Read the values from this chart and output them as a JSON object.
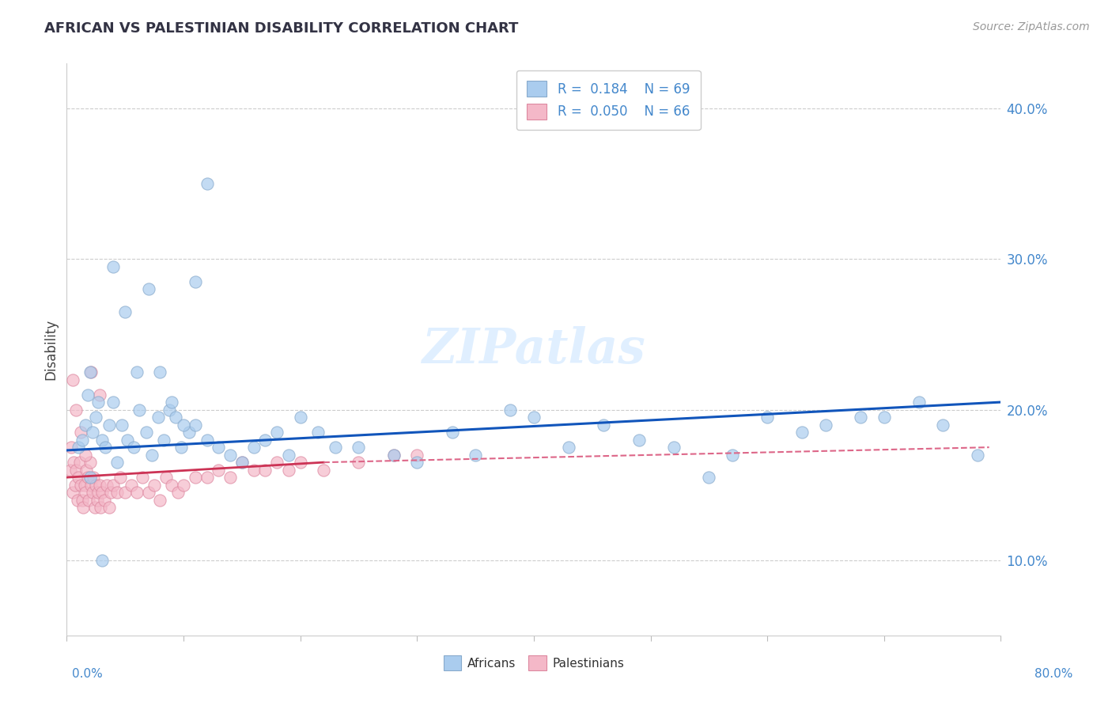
{
  "title": "AFRICAN VS PALESTINIAN DISABILITY CORRELATION CHART",
  "source": "Source: ZipAtlas.com",
  "ylabel": "Disability",
  "xlim": [
    0.0,
    80.0
  ],
  "ylim": [
    5.0,
    43.0
  ],
  "yticks": [
    10.0,
    20.0,
    30.0,
    40.0
  ],
  "ytick_labels": [
    "10.0%",
    "20.0%",
    "30.0%",
    "40.0%"
  ],
  "african_color": "#aaccee",
  "african_edge": "#88aacc",
  "palestinian_color": "#f4b8c8",
  "palestinian_edge": "#dd88a0",
  "trend_african_color": "#1155bb",
  "trend_palestinian_color": "#cc3355",
  "trend_pal_dash_color": "#dd6688",
  "R_african": 0.184,
  "N_african": 69,
  "R_palestinian": 0.05,
  "N_palestinian": 66,
  "watermark": "ZIPatlas",
  "african_x": [
    1.0,
    1.3,
    1.6,
    1.8,
    2.0,
    2.2,
    2.5,
    2.7,
    3.0,
    3.3,
    3.6,
    4.0,
    4.3,
    4.7,
    5.2,
    5.7,
    6.2,
    6.8,
    7.3,
    7.8,
    8.3,
    8.8,
    9.3,
    9.8,
    10.5,
    11.0,
    12.0,
    13.0,
    14.0,
    15.0,
    16.0,
    17.0,
    18.0,
    19.0,
    20.0,
    21.5,
    23.0,
    25.0,
    28.0,
    30.0,
    33.0,
    35.0,
    38.0,
    40.0,
    43.0,
    46.0,
    49.0,
    52.0,
    55.0,
    57.0,
    60.0,
    63.0,
    65.0,
    68.0,
    70.0,
    73.0,
    75.0,
    78.0,
    2.0,
    3.0,
    4.0,
    5.0,
    6.0,
    7.0,
    8.0,
    9.0,
    10.0,
    11.0,
    12.0
  ],
  "african_y": [
    17.5,
    18.0,
    19.0,
    21.0,
    22.5,
    18.5,
    19.5,
    20.5,
    18.0,
    17.5,
    19.0,
    20.5,
    16.5,
    19.0,
    18.0,
    17.5,
    20.0,
    18.5,
    17.0,
    19.5,
    18.0,
    20.0,
    19.5,
    17.5,
    18.5,
    19.0,
    18.0,
    17.5,
    17.0,
    16.5,
    17.5,
    18.0,
    18.5,
    17.0,
    19.5,
    18.5,
    17.5,
    17.5,
    17.0,
    16.5,
    18.5,
    17.0,
    20.0,
    19.5,
    17.5,
    19.0,
    18.0,
    17.5,
    15.5,
    17.0,
    19.5,
    18.5,
    19.0,
    19.5,
    19.5,
    20.5,
    19.0,
    17.0,
    15.5,
    10.0,
    29.5,
    26.5,
    22.5,
    28.0,
    22.5,
    20.5,
    19.0,
    28.5,
    35.0
  ],
  "palestinian_x": [
    0.3,
    0.4,
    0.5,
    0.6,
    0.7,
    0.8,
    0.9,
    1.0,
    1.1,
    1.2,
    1.3,
    1.4,
    1.5,
    1.6,
    1.7,
    1.8,
    1.9,
    2.0,
    2.1,
    2.2,
    2.3,
    2.4,
    2.5,
    2.6,
    2.7,
    2.8,
    2.9,
    3.0,
    3.2,
    3.4,
    3.6,
    3.8,
    4.0,
    4.3,
    4.6,
    5.0,
    5.5,
    6.0,
    6.5,
    7.0,
    7.5,
    8.0,
    8.5,
    9.0,
    9.5,
    10.0,
    11.0,
    12.0,
    13.0,
    14.0,
    15.0,
    16.0,
    17.0,
    18.0,
    19.0,
    20.0,
    22.0,
    25.0,
    28.0,
    30.0,
    0.5,
    0.8,
    1.2,
    1.6,
    2.1,
    2.8
  ],
  "palestinian_y": [
    16.0,
    17.5,
    14.5,
    16.5,
    15.0,
    16.0,
    14.0,
    15.5,
    16.5,
    15.0,
    14.0,
    13.5,
    15.0,
    14.5,
    16.0,
    15.5,
    14.0,
    16.5,
    15.0,
    14.5,
    15.5,
    13.5,
    15.0,
    14.0,
    14.5,
    15.0,
    13.5,
    14.5,
    14.0,
    15.0,
    13.5,
    14.5,
    15.0,
    14.5,
    15.5,
    14.5,
    15.0,
    14.5,
    15.5,
    14.5,
    15.0,
    14.0,
    15.5,
    15.0,
    14.5,
    15.0,
    15.5,
    15.5,
    16.0,
    15.5,
    16.5,
    16.0,
    16.0,
    16.5,
    16.0,
    16.5,
    16.0,
    16.5,
    17.0,
    17.0,
    22.0,
    20.0,
    18.5,
    17.0,
    22.5,
    21.0
  ],
  "af_trend_x0": 0.0,
  "af_trend_x1": 80.0,
  "af_trend_y0": 17.3,
  "af_trend_y1": 20.5,
  "pal_solid_x0": 0.0,
  "pal_solid_x1": 22.0,
  "pal_solid_y0": 15.5,
  "pal_solid_y1": 16.5,
  "pal_dash_x0": 22.0,
  "pal_dash_x1": 79.0,
  "pal_dash_y0": 16.5,
  "pal_dash_y1": 17.5
}
